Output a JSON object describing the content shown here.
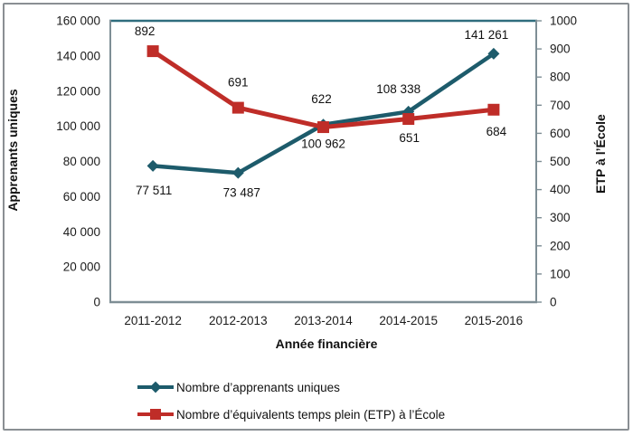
{
  "chart_data": {
    "type": "line",
    "categories": [
      "2011-2012",
      "2012-2013",
      "2013-2014",
      "2014-2015",
      "2015-2016"
    ],
    "xlabel": "Année financière",
    "ylabel_left": "Apprenants uniques",
    "ylabel_right": "ETP à l’École",
    "grid": false,
    "legend_position": "bottom-left",
    "axes": {
      "left": {
        "min": 0,
        "max": 160000,
        "step": 20000,
        "tick_labels": [
          "0",
          "20 000",
          "40 000",
          "60 000",
          "80 000",
          "100 000",
          "120 000",
          "140 000",
          "160 000"
        ]
      },
      "right": {
        "min": 0,
        "max": 1000,
        "step": 100,
        "tick_labels": [
          "0",
          "100",
          "200",
          "300",
          "400",
          "500",
          "600",
          "700",
          "800",
          "900",
          "1000"
        ]
      }
    },
    "series": [
      {
        "name": "Nombre d’apprenants uniques",
        "axis": "left",
        "color": "#1D5B6B",
        "marker": "diamond",
        "line_width": 4.5,
        "values": [
          77511,
          73487,
          100962,
          108338,
          141261
        ],
        "labels": [
          "77 511",
          "73 487",
          "100 962",
          "108 338",
          "141 261"
        ],
        "label_offsets": [
          [
            1,
            27
          ],
          [
            4,
            22
          ],
          [
            0,
            21
          ],
          [
            -11,
            -25
          ],
          [
            -8,
            -21
          ]
        ]
      },
      {
        "name": "Nombre d’équivalents temps plein (ETP) à l’École",
        "axis": "right",
        "color": "#BF2D28",
        "marker": "square",
        "line_width": 5,
        "values": [
          892,
          691,
          622,
          651,
          684
        ],
        "labels": [
          "892",
          "691",
          "622",
          "651",
          "684"
        ],
        "label_offsets": [
          [
            -9,
            -22
          ],
          [
            0,
            -28
          ],
          [
            -2,
            -31
          ],
          [
            1,
            21
          ],
          [
            3,
            24
          ]
        ]
      }
    ],
    "colors": {
      "plot_border": "#7E8E95",
      "plot_border_top": "#2F6D7D",
      "outer_frame": "#8a8f93",
      "tick_text": "#1b1b1b"
    }
  }
}
